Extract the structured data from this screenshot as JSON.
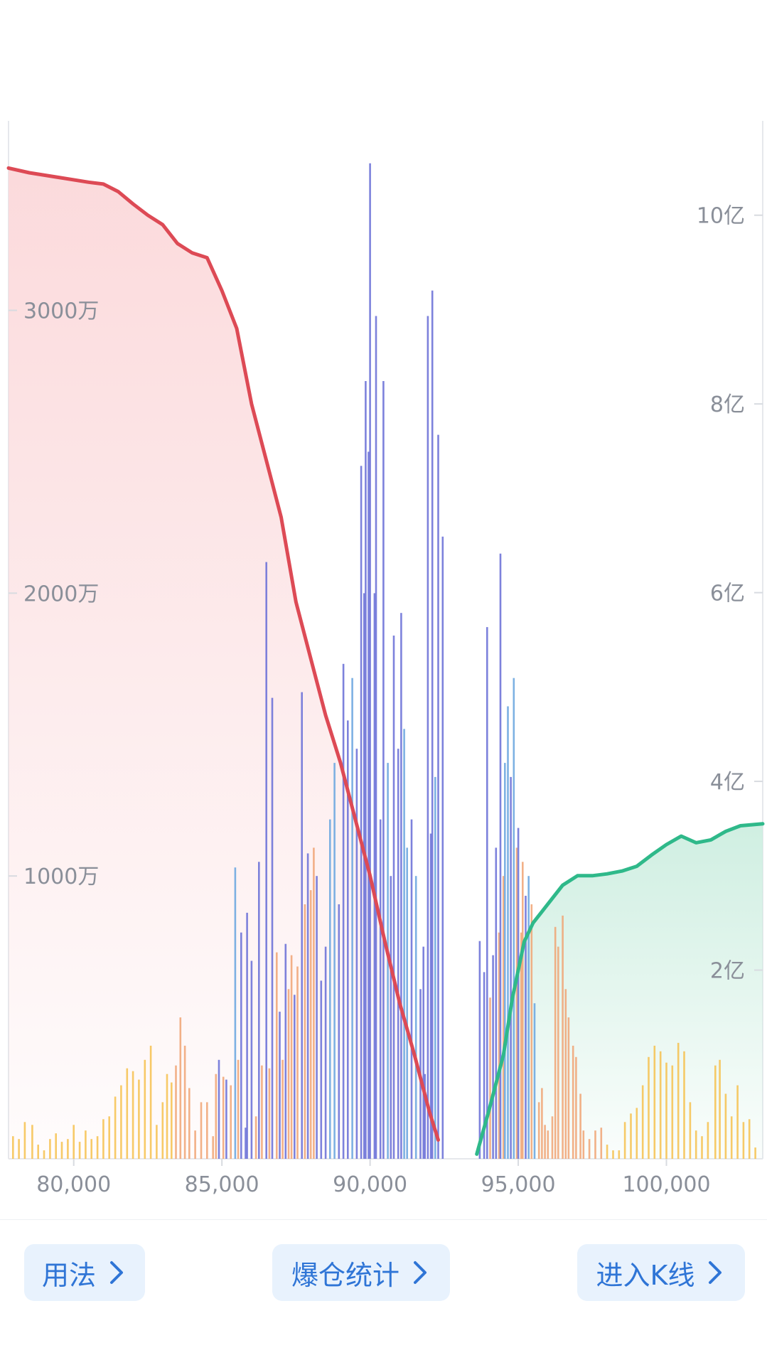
{
  "colors": {
    "short_curve": "#dd4a55",
    "short_fill": "#fbd8da",
    "long_curve": "#2fb98a",
    "long_fill": "#cdeee0",
    "bar_blue": "#6f74d8",
    "bar_lightblue": "#6fa8e0",
    "bar_orange": "#f0a373",
    "bar_yellow": "#f6c14e",
    "axis_text": "#8a8f99",
    "button_bg": "#e8f2fd",
    "button_text": "#2f75d6"
  },
  "chart_data": {
    "type": "bar+area",
    "title": "",
    "x_ticks": [
      "80,000",
      "85,000",
      "90,000",
      "95,000",
      "100,000"
    ],
    "xlim": [
      77800,
      103250
    ],
    "left_axis": {
      "ticks": [
        "1000万",
        "2000万",
        "3000万"
      ],
      "tick_values": [
        10000000,
        20000000,
        30000000
      ],
      "ylim": [
        0,
        36700000
      ]
    },
    "right_axis": {
      "ticks": [
        "2亿",
        "4亿",
        "6亿",
        "8亿",
        "10亿"
      ],
      "tick_values": [
        200000000,
        400000000,
        600000000,
        800000000,
        1000000000
      ],
      "ylim": [
        0,
        1100000000
      ]
    },
    "short_cumulative": {
      "x": [
        77800,
        78500,
        79500,
        80500,
        81000,
        81500,
        82000,
        82500,
        83000,
        83500,
        84000,
        84500,
        85000,
        85500,
        86000,
        86500,
        87000,
        87500,
        88000,
        88500,
        89000,
        89500,
        90000,
        90500,
        91000,
        91500,
        92000,
        92300
      ],
      "y": [
        1050000000,
        1045000000,
        1040000000,
        1035000000,
        1033000000,
        1025000000,
        1012000000,
        1000000000,
        990000000,
        970000000,
        960000000,
        955000000,
        920000000,
        880000000,
        800000000,
        740000000,
        680000000,
        590000000,
        530000000,
        470000000,
        420000000,
        360000000,
        300000000,
        230000000,
        165000000,
        110000000,
        50000000,
        20000000
      ]
    },
    "long_cumulative": {
      "x": [
        93600,
        94000,
        94500,
        94800,
        95000,
        95200,
        95500,
        96000,
        96500,
        97000,
        97500,
        98000,
        98500,
        99000,
        99500,
        100000,
        100500,
        101000,
        101500,
        102000,
        102500,
        103250
      ],
      "y": [
        5000000,
        50000000,
        110000000,
        170000000,
        200000000,
        230000000,
        250000000,
        270000000,
        290000000,
        300000000,
        300000000,
        302000000,
        305000000,
        310000000,
        322000000,
        333000000,
        342000000,
        335000000,
        338000000,
        347000000,
        353000000,
        355000000
      ]
    },
    "liquidation_bars": [
      {
        "x": 77950,
        "v": 800000,
        "c": "y"
      },
      {
        "x": 78150,
        "v": 700000,
        "c": "y"
      },
      {
        "x": 78350,
        "v": 1300000,
        "c": "y"
      },
      {
        "x": 78600,
        "v": 1200000,
        "c": "y"
      },
      {
        "x": 78800,
        "v": 500000,
        "c": "y"
      },
      {
        "x": 79000,
        "v": 300000,
        "c": "y"
      },
      {
        "x": 79200,
        "v": 700000,
        "c": "y"
      },
      {
        "x": 79400,
        "v": 900000,
        "c": "y"
      },
      {
        "x": 79600,
        "v": 600000,
        "c": "y"
      },
      {
        "x": 79800,
        "v": 700000,
        "c": "y"
      },
      {
        "x": 80000,
        "v": 1200000,
        "c": "y"
      },
      {
        "x": 80200,
        "v": 600000,
        "c": "y"
      },
      {
        "x": 80400,
        "v": 1000000,
        "c": "y"
      },
      {
        "x": 80600,
        "v": 700000,
        "c": "y"
      },
      {
        "x": 80800,
        "v": 800000,
        "c": "y"
      },
      {
        "x": 81000,
        "v": 1400000,
        "c": "y"
      },
      {
        "x": 81200,
        "v": 1500000,
        "c": "y"
      },
      {
        "x": 81400,
        "v": 2200000,
        "c": "y"
      },
      {
        "x": 81600,
        "v": 2600000,
        "c": "y"
      },
      {
        "x": 81800,
        "v": 3200000,
        "c": "y"
      },
      {
        "x": 82000,
        "v": 3100000,
        "c": "y"
      },
      {
        "x": 82200,
        "v": 2800000,
        "c": "y"
      },
      {
        "x": 82400,
        "v": 3500000,
        "c": "y"
      },
      {
        "x": 82600,
        "v": 4000000,
        "c": "y"
      },
      {
        "x": 82800,
        "v": 1200000,
        "c": "y"
      },
      {
        "x": 83000,
        "v": 2000000,
        "c": "y"
      },
      {
        "x": 83150,
        "v": 3000000,
        "c": "y"
      },
      {
        "x": 83300,
        "v": 2700000,
        "c": "y"
      },
      {
        "x": 83450,
        "v": 3300000,
        "c": "o"
      },
      {
        "x": 83600,
        "v": 5000000,
        "c": "o"
      },
      {
        "x": 83750,
        "v": 4000000,
        "c": "o"
      },
      {
        "x": 83900,
        "v": 2500000,
        "c": "o"
      },
      {
        "x": 84100,
        "v": 1000000,
        "c": "o"
      },
      {
        "x": 84300,
        "v": 2000000,
        "c": "o"
      },
      {
        "x": 84500,
        "v": 2000000,
        "c": "o"
      },
      {
        "x": 84700,
        "v": 800000,
        "c": "o"
      },
      {
        "x": 84800,
        "v": 3000000,
        "c": "o"
      },
      {
        "x": 84900,
        "v": 3500000,
        "c": "b"
      },
      {
        "x": 85050,
        "v": 2900000,
        "c": "o"
      },
      {
        "x": 85150,
        "v": 2800000,
        "c": "b"
      },
      {
        "x": 85300,
        "v": 2600000,
        "c": "o"
      },
      {
        "x": 85450,
        "v": 10300000,
        "c": "lb"
      },
      {
        "x": 85550,
        "v": 3500000,
        "c": "o"
      },
      {
        "x": 85650,
        "v": 8000000,
        "c": "b"
      },
      {
        "x": 85800,
        "v": 1100000,
        "c": "b"
      },
      {
        "x": 85850,
        "v": 8700000,
        "c": "b"
      },
      {
        "x": 86000,
        "v": 7000000,
        "c": "b"
      },
      {
        "x": 86150,
        "v": 1500000,
        "c": "o"
      },
      {
        "x": 86250,
        "v": 10500000,
        "c": "b"
      },
      {
        "x": 86350,
        "v": 3300000,
        "c": "o"
      },
      {
        "x": 86500,
        "v": 21100000,
        "c": "b"
      },
      {
        "x": 86600,
        "v": 3200000,
        "c": "o"
      },
      {
        "x": 86700,
        "v": 16300000,
        "c": "b"
      },
      {
        "x": 86850,
        "v": 7300000,
        "c": "o"
      },
      {
        "x": 86950,
        "v": 5200000,
        "c": "b"
      },
      {
        "x": 87050,
        "v": 3500000,
        "c": "o"
      },
      {
        "x": 87150,
        "v": 7600000,
        "c": "b"
      },
      {
        "x": 87250,
        "v": 6000000,
        "c": "o"
      },
      {
        "x": 87350,
        "v": 7200000,
        "c": "o"
      },
      {
        "x": 87450,
        "v": 5800000,
        "c": "b"
      },
      {
        "x": 87550,
        "v": 6800000,
        "c": "o"
      },
      {
        "x": 87700,
        "v": 16500000,
        "c": "b"
      },
      {
        "x": 87800,
        "v": 9000000,
        "c": "o"
      },
      {
        "x": 87900,
        "v": 10800000,
        "c": "b"
      },
      {
        "x": 88000,
        "v": 9500000,
        "c": "o"
      },
      {
        "x": 88100,
        "v": 11000000,
        "c": "o"
      },
      {
        "x": 88200,
        "v": 10000000,
        "c": "b"
      },
      {
        "x": 88350,
        "v": 6300000,
        "c": "b"
      },
      {
        "x": 88500,
        "v": 7500000,
        "c": "b"
      },
      {
        "x": 88650,
        "v": 12000000,
        "c": "lb"
      },
      {
        "x": 88800,
        "v": 14000000,
        "c": "lb"
      },
      {
        "x": 88950,
        "v": 9000000,
        "c": "b"
      },
      {
        "x": 89100,
        "v": 17500000,
        "c": "b"
      },
      {
        "x": 89250,
        "v": 15500000,
        "c": "b"
      },
      {
        "x": 89400,
        "v": 17000000,
        "c": "lb"
      },
      {
        "x": 89550,
        "v": 14500000,
        "c": "b"
      },
      {
        "x": 89700,
        "v": 24500000,
        "c": "b"
      },
      {
        "x": 89800,
        "v": 20000000,
        "c": "b"
      },
      {
        "x": 89850,
        "v": 27500000,
        "c": "b"
      },
      {
        "x": 89950,
        "v": 25000000,
        "c": "b"
      },
      {
        "x": 90000,
        "v": 35200000,
        "c": "b"
      },
      {
        "x": 90150,
        "v": 20000000,
        "c": "b"
      },
      {
        "x": 90200,
        "v": 29800000,
        "c": "b"
      },
      {
        "x": 90350,
        "v": 12000000,
        "c": "b"
      },
      {
        "x": 90450,
        "v": 27500000,
        "c": "b"
      },
      {
        "x": 90600,
        "v": 14000000,
        "c": "lb"
      },
      {
        "x": 90700,
        "v": 10000000,
        "c": "b"
      },
      {
        "x": 90800,
        "v": 18500000,
        "c": "b"
      },
      {
        "x": 90950,
        "v": 14500000,
        "c": "b"
      },
      {
        "x": 91050,
        "v": 19300000,
        "c": "b"
      },
      {
        "x": 91150,
        "v": 15200000,
        "c": "lb"
      },
      {
        "x": 91250,
        "v": 11000000,
        "c": "lb"
      },
      {
        "x": 91400,
        "v": 12000000,
        "c": "b"
      },
      {
        "x": 91550,
        "v": 10000000,
        "c": "lb"
      },
      {
        "x": 91700,
        "v": 6000000,
        "c": "b"
      },
      {
        "x": 91800,
        "v": 7500000,
        "c": "b"
      },
      {
        "x": 91850,
        "v": 3000000,
        "c": "b"
      },
      {
        "x": 91950,
        "v": 29800000,
        "c": "b"
      },
      {
        "x": 92050,
        "v": 11500000,
        "c": "b"
      },
      {
        "x": 92100,
        "v": 30700000,
        "c": "b"
      },
      {
        "x": 92200,
        "v": 13500000,
        "c": "lb"
      },
      {
        "x": 92300,
        "v": 25600000,
        "c": "b"
      },
      {
        "x": 92450,
        "v": 22000000,
        "c": "b"
      },
      {
        "x": 93700,
        "v": 7700000,
        "c": "b"
      },
      {
        "x": 93850,
        "v": 6600000,
        "c": "b"
      },
      {
        "x": 93950,
        "v": 18800000,
        "c": "b"
      },
      {
        "x": 94050,
        "v": 5700000,
        "c": "o"
      },
      {
        "x": 94150,
        "v": 7200000,
        "c": "b"
      },
      {
        "x": 94250,
        "v": 11000000,
        "c": "b"
      },
      {
        "x": 94350,
        "v": 8000000,
        "c": "o"
      },
      {
        "x": 94400,
        "v": 21400000,
        "c": "b"
      },
      {
        "x": 94500,
        "v": 10000000,
        "c": "o"
      },
      {
        "x": 94550,
        "v": 14000000,
        "c": "lb"
      },
      {
        "x": 94650,
        "v": 16000000,
        "c": "lb"
      },
      {
        "x": 94750,
        "v": 13500000,
        "c": "b"
      },
      {
        "x": 94850,
        "v": 17000000,
        "c": "lb"
      },
      {
        "x": 94950,
        "v": 11000000,
        "c": "o"
      },
      {
        "x": 95000,
        "v": 11700000,
        "c": "b"
      },
      {
        "x": 95100,
        "v": 8000000,
        "c": "o"
      },
      {
        "x": 95150,
        "v": 10500000,
        "c": "o"
      },
      {
        "x": 95250,
        "v": 9300000,
        "c": "b"
      },
      {
        "x": 95350,
        "v": 10000000,
        "c": "lb"
      },
      {
        "x": 95450,
        "v": 9000000,
        "c": "o"
      },
      {
        "x": 95550,
        "v": 5500000,
        "c": "lb"
      },
      {
        "x": 95700,
        "v": 2000000,
        "c": "o"
      },
      {
        "x": 95800,
        "v": 2500000,
        "c": "o"
      },
      {
        "x": 95900,
        "v": 1200000,
        "c": "o"
      },
      {
        "x": 96000,
        "v": 1000000,
        "c": "o"
      },
      {
        "x": 96150,
        "v": 1500000,
        "c": "o"
      },
      {
        "x": 96250,
        "v": 8200000,
        "c": "o"
      },
      {
        "x": 96350,
        "v": 7500000,
        "c": "o"
      },
      {
        "x": 96500,
        "v": 8600000,
        "c": "o"
      },
      {
        "x": 96600,
        "v": 6000000,
        "c": "o"
      },
      {
        "x": 96700,
        "v": 5000000,
        "c": "o"
      },
      {
        "x": 96850,
        "v": 4000000,
        "c": "o"
      },
      {
        "x": 96950,
        "v": 3600000,
        "c": "o"
      },
      {
        "x": 97100,
        "v": 2300000,
        "c": "o"
      },
      {
        "x": 97200,
        "v": 1000000,
        "c": "o"
      },
      {
        "x": 97400,
        "v": 700000,
        "c": "o"
      },
      {
        "x": 97600,
        "v": 1000000,
        "c": "o"
      },
      {
        "x": 97800,
        "v": 1100000,
        "c": "o"
      },
      {
        "x": 98000,
        "v": 500000,
        "c": "y"
      },
      {
        "x": 98200,
        "v": 300000,
        "c": "y"
      },
      {
        "x": 98400,
        "v": 300000,
        "c": "y"
      },
      {
        "x": 98600,
        "v": 1300000,
        "c": "y"
      },
      {
        "x": 98800,
        "v": 1600000,
        "c": "y"
      },
      {
        "x": 99000,
        "v": 1800000,
        "c": "y"
      },
      {
        "x": 99200,
        "v": 2600000,
        "c": "y"
      },
      {
        "x": 99400,
        "v": 3600000,
        "c": "y"
      },
      {
        "x": 99600,
        "v": 4000000,
        "c": "y"
      },
      {
        "x": 99800,
        "v": 3800000,
        "c": "y"
      },
      {
        "x": 100000,
        "v": 3400000,
        "c": "y"
      },
      {
        "x": 100200,
        "v": 3300000,
        "c": "y"
      },
      {
        "x": 100400,
        "v": 4100000,
        "c": "y"
      },
      {
        "x": 100600,
        "v": 3800000,
        "c": "y"
      },
      {
        "x": 100800,
        "v": 2000000,
        "c": "y"
      },
      {
        "x": 101000,
        "v": 1000000,
        "c": "y"
      },
      {
        "x": 101200,
        "v": 800000,
        "c": "y"
      },
      {
        "x": 101400,
        "v": 1300000,
        "c": "y"
      },
      {
        "x": 101650,
        "v": 3300000,
        "c": "y"
      },
      {
        "x": 101800,
        "v": 3500000,
        "c": "y"
      },
      {
        "x": 102000,
        "v": 2300000,
        "c": "y"
      },
      {
        "x": 102200,
        "v": 1500000,
        "c": "y"
      },
      {
        "x": 102400,
        "v": 2600000,
        "c": "y"
      },
      {
        "x": 102600,
        "v": 1300000,
        "c": "y"
      },
      {
        "x": 102800,
        "v": 1400000,
        "c": "y"
      },
      {
        "x": 103000,
        "v": 400000,
        "c": "y"
      }
    ]
  },
  "footer": {
    "usage_label": "用法",
    "stats_label": "爆仓统计",
    "kline_label": "进入K线"
  }
}
